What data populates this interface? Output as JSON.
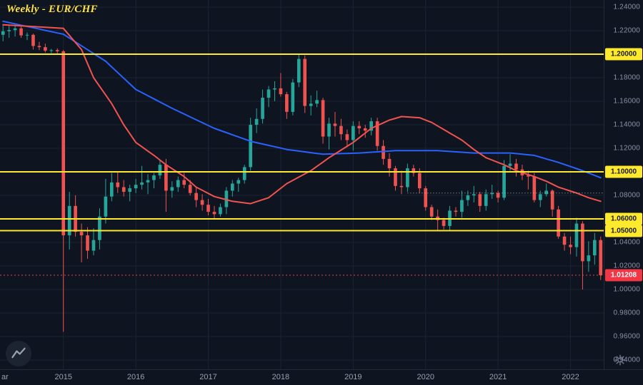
{
  "header": {
    "title": "Weekly - EUR/CHF"
  },
  "chart_data": {
    "type": "candlestick",
    "symbol": "EUR/CHF",
    "timeframe": "Weekly",
    "title": "Weekly - EUR/CHF",
    "ylim": [
      0.9321,
      1.2461
    ],
    "y_ticks": [
      1.24,
      1.22,
      1.2,
      1.18,
      1.16,
      1.14,
      1.12,
      1.1,
      1.08,
      1.06,
      1.04,
      1.02,
      1.0,
      0.98,
      0.96,
      0.94
    ],
    "x_labels": [
      {
        "text": "ar",
        "i": 0,
        "grid": false
      },
      {
        "text": "2015",
        "i": 10,
        "grid": true
      },
      {
        "text": "2016",
        "i": 22,
        "grid": true
      },
      {
        "text": "2017",
        "i": 34,
        "grid": true
      },
      {
        "text": "2018",
        "i": 46,
        "grid": true
      },
      {
        "text": "2019",
        "i": 58,
        "grid": true
      },
      {
        "text": "2020",
        "i": 70,
        "grid": true
      },
      {
        "text": "2021",
        "i": 82,
        "grid": true
      },
      {
        "text": "2022",
        "i": 94,
        "grid": true
      }
    ],
    "levels": {
      "yellow": [
        1.2,
        1.1,
        1.06,
        1.05
      ],
      "dotted": {
        "price": 1.082,
        "from_index": 67
      },
      "last_price": 1.01208
    },
    "colors": {
      "background": "#0e1420",
      "grid": "#1c2432",
      "up": "#26a69a",
      "down": "#ef5350",
      "ma_blue": "#2962ff",
      "ma_red": "#f05350",
      "level_yellow": "#ffe92c",
      "dotted_line": "#cfd3de",
      "axis_text": "#8b93a6",
      "last_price_badge": "#f23645",
      "title_text": "#ffe24a"
    },
    "candles": [
      [
        1.2165,
        1.2245,
        1.211,
        1.2195
      ],
      [
        1.2195,
        1.224,
        1.214,
        1.2205
      ],
      [
        1.2205,
        1.224,
        1.215,
        1.222
      ],
      [
        1.222,
        1.2235,
        1.214,
        1.216
      ],
      [
        1.216,
        1.2185,
        1.212,
        1.2165
      ],
      [
        1.2165,
        1.2175,
        1.204,
        1.207
      ],
      [
        1.207,
        1.2105,
        1.2035,
        1.206
      ],
      [
        1.206,
        1.209,
        1.2015,
        1.203
      ],
      [
        1.203,
        1.2045,
        1.201,
        1.2035
      ],
      [
        1.2035,
        1.205,
        1.2008,
        1.2025
      ],
      [
        1.2025,
        1.2035,
        0.964,
        1.046
      ],
      [
        1.046,
        1.083,
        1.034,
        1.071
      ],
      [
        1.071,
        1.08,
        1.045,
        1.049
      ],
      [
        1.049,
        1.056,
        1.023,
        1.046
      ],
      [
        1.046,
        1.053,
        1.026,
        1.033
      ],
      [
        1.033,
        1.052,
        1.029,
        1.042
      ],
      [
        1.042,
        1.069,
        1.034,
        1.062
      ],
      [
        1.062,
        1.094,
        1.056,
        1.079
      ],
      [
        1.079,
        1.099,
        1.075,
        1.091
      ],
      [
        1.091,
        1.1,
        1.082,
        1.087
      ],
      [
        1.087,
        1.093,
        1.079,
        1.083
      ],
      [
        1.083,
        1.089,
        1.075,
        1.086
      ],
      [
        1.086,
        1.094,
        1.082,
        1.089
      ],
      [
        1.089,
        1.105,
        1.085,
        1.091
      ],
      [
        1.091,
        1.098,
        1.081,
        1.093
      ],
      [
        1.093,
        1.099,
        1.086,
        1.097
      ],
      [
        1.097,
        1.11,
        1.094,
        1.106
      ],
      [
        1.106,
        1.111,
        1.066,
        1.084
      ],
      [
        1.084,
        1.092,
        1.078,
        1.087
      ],
      [
        1.087,
        1.096,
        1.083,
        1.093
      ],
      [
        1.093,
        1.099,
        1.086,
        1.089
      ],
      [
        1.089,
        1.093,
        1.08,
        1.082
      ],
      [
        1.082,
        1.087,
        1.07,
        1.076
      ],
      [
        1.076,
        1.081,
        1.067,
        1.072
      ],
      [
        1.072,
        1.077,
        1.063,
        1.066
      ],
      [
        1.066,
        1.071,
        1.06,
        1.064
      ],
      [
        1.064,
        1.073,
        1.062,
        1.07
      ],
      [
        1.07,
        1.087,
        1.064,
        1.084
      ],
      [
        1.084,
        1.093,
        1.079,
        1.09
      ],
      [
        1.09,
        1.095,
        1.083,
        1.093
      ],
      [
        1.093,
        1.106,
        1.09,
        1.104
      ],
      [
        1.104,
        1.146,
        1.101,
        1.14
      ],
      [
        1.14,
        1.154,
        1.133,
        1.145
      ],
      [
        1.145,
        1.17,
        1.141,
        1.163
      ],
      [
        1.163,
        1.173,
        1.155,
        1.17
      ],
      [
        1.17,
        1.177,
        1.16,
        1.171
      ],
      [
        1.171,
        1.184,
        1.164,
        1.166
      ],
      [
        1.166,
        1.168,
        1.145,
        1.151
      ],
      [
        1.151,
        1.179,
        1.148,
        1.176
      ],
      [
        1.176,
        1.2005,
        1.172,
        1.196
      ],
      [
        1.196,
        1.199,
        1.15,
        1.156
      ],
      [
        1.156,
        1.165,
        1.148,
        1.158
      ],
      [
        1.158,
        1.169,
        1.155,
        1.161
      ],
      [
        1.161,
        1.163,
        1.124,
        1.13
      ],
      [
        1.13,
        1.146,
        1.119,
        1.141
      ],
      [
        1.141,
        1.151,
        1.13,
        1.139
      ],
      [
        1.139,
        1.145,
        1.127,
        1.132
      ],
      [
        1.132,
        1.136,
        1.121,
        1.127
      ],
      [
        1.127,
        1.143,
        1.118,
        1.139
      ],
      [
        1.139,
        1.143,
        1.132,
        1.137
      ],
      [
        1.137,
        1.14,
        1.129,
        1.135
      ],
      [
        1.135,
        1.146,
        1.131,
        1.143
      ],
      [
        1.143,
        1.146,
        1.118,
        1.122
      ],
      [
        1.122,
        1.127,
        1.106,
        1.111
      ],
      [
        1.111,
        1.116,
        1.096,
        1.103
      ],
      [
        1.103,
        1.105,
        1.084,
        1.088
      ],
      [
        1.088,
        1.101,
        1.081,
        1.087
      ],
      [
        1.087,
        1.107,
        1.083,
        1.103
      ],
      [
        1.103,
        1.106,
        1.096,
        1.099
      ],
      [
        1.099,
        1.103,
        1.082,
        1.086
      ],
      [
        1.086,
        1.088,
        1.067,
        1.07
      ],
      [
        1.07,
        1.072,
        1.059,
        1.062
      ],
      [
        1.062,
        1.068,
        1.0505,
        1.059
      ],
      [
        1.059,
        1.061,
        1.051,
        1.054
      ],
      [
        1.054,
        1.071,
        1.05,
        1.067
      ],
      [
        1.067,
        1.07,
        1.062,
        1.066
      ],
      [
        1.066,
        1.084,
        1.061,
        1.076
      ],
      [
        1.076,
        1.084,
        1.071,
        1.08
      ],
      [
        1.08,
        1.088,
        1.074,
        1.081
      ],
      [
        1.081,
        1.083,
        1.066,
        1.071
      ],
      [
        1.071,
        1.085,
        1.067,
        1.081
      ],
      [
        1.081,
        1.089,
        1.077,
        1.082
      ],
      [
        1.082,
        1.084,
        1.074,
        1.078
      ],
      [
        1.078,
        1.11,
        1.076,
        1.105
      ],
      [
        1.105,
        1.115,
        1.101,
        1.107
      ],
      [
        1.107,
        1.111,
        1.096,
        1.102
      ],
      [
        1.102,
        1.106,
        1.093,
        1.097
      ],
      [
        1.097,
        1.101,
        1.085,
        1.096
      ],
      [
        1.096,
        1.099,
        1.074,
        1.076
      ],
      [
        1.076,
        1.084,
        1.07,
        1.081
      ],
      [
        1.081,
        1.09,
        1.079,
        1.084
      ],
      [
        1.084,
        1.085,
        1.062,
        1.068
      ],
      [
        1.068,
        1.071,
        1.043,
        1.045
      ],
      [
        1.045,
        1.048,
        1.033,
        1.038
      ],
      [
        1.038,
        1.045,
        1.03,
        1.036
      ],
      [
        1.036,
        1.061,
        1.028,
        1.056
      ],
      [
        1.056,
        1.058,
        1.0,
        1.024
      ],
      [
        1.024,
        1.041,
        1.015,
        1.029
      ],
      [
        1.029,
        1.048,
        1.021,
        1.042
      ],
      [
        1.042,
        1.045,
        1.008,
        1.0121
      ]
    ],
    "moving_averages": [
      {
        "name": "ma-blue",
        "color": "#2962ff",
        "anchors": [
          [
            0,
            1.228
          ],
          [
            10,
            1.217
          ],
          [
            17,
            1.194
          ],
          [
            22,
            1.17
          ],
          [
            28,
            1.154
          ],
          [
            35,
            1.137
          ],
          [
            41,
            1.126
          ],
          [
            47,
            1.119
          ],
          [
            53,
            1.115
          ],
          [
            59,
            1.116
          ],
          [
            65,
            1.118
          ],
          [
            72,
            1.118
          ],
          [
            78,
            1.116
          ],
          [
            84,
            1.116
          ],
          [
            88,
            1.114
          ],
          [
            92,
            1.108
          ],
          [
            96,
            1.101
          ],
          [
            99,
            1.095
          ]
        ]
      },
      {
        "name": "ma-red",
        "color": "#f05350",
        "anchors": [
          [
            0,
            1.225
          ],
          [
            10,
            1.222
          ],
          [
            13,
            1.204
          ],
          [
            15,
            1.18
          ],
          [
            18,
            1.158
          ],
          [
            20,
            1.14
          ],
          [
            22,
            1.125
          ],
          [
            25,
            1.114
          ],
          [
            27,
            1.106
          ],
          [
            30,
            1.096
          ],
          [
            32,
            1.087
          ],
          [
            35,
            1.079
          ],
          [
            38,
            1.075
          ],
          [
            41,
            1.073
          ],
          [
            44,
            1.078
          ],
          [
            47,
            1.09
          ],
          [
            51,
            1.101
          ],
          [
            54,
            1.112
          ],
          [
            58,
            1.125
          ],
          [
            61,
            1.137
          ],
          [
            64,
            1.144
          ],
          [
            66,
            1.147
          ],
          [
            69,
            1.146
          ],
          [
            71,
            1.142
          ],
          [
            73,
            1.136
          ],
          [
            76,
            1.127
          ],
          [
            78,
            1.119
          ],
          [
            80,
            1.112
          ],
          [
            83,
            1.106
          ],
          [
            85,
            1.101
          ],
          [
            88,
            1.096
          ],
          [
            90,
            1.092
          ],
          [
            92,
            1.087
          ],
          [
            95,
            1.082
          ],
          [
            97,
            1.078
          ],
          [
            99,
            1.075
          ]
        ]
      }
    ]
  }
}
